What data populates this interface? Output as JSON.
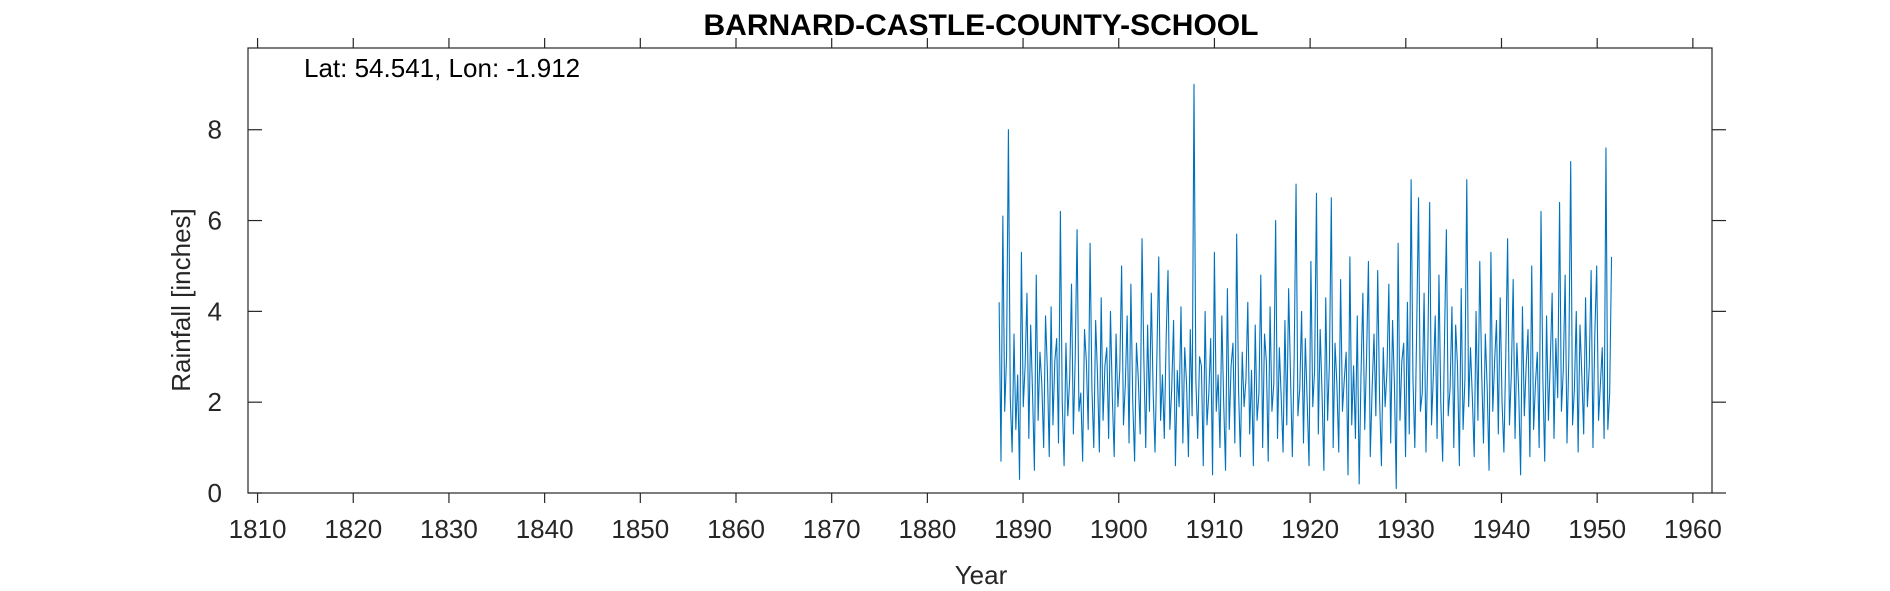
{
  "chart_data": {
    "type": "line",
    "title": "BARNARD-CASTLE-COUNTY-SCHOOL",
    "annotation": "Lat: 54.541, Lon: -1.912",
    "xlabel": "Year",
    "ylabel": "Rainfall [inches]",
    "xlim": [
      1809,
      1962
    ],
    "ylim": [
      0,
      9.8
    ],
    "xticks": [
      1810,
      1820,
      1830,
      1840,
      1850,
      1860,
      1870,
      1880,
      1890,
      1900,
      1910,
      1920,
      1930,
      1940,
      1950,
      1960
    ],
    "yticks": [
      0,
      2,
      4,
      6,
      8
    ],
    "grid": false,
    "series": [
      {
        "color": "#0072bd",
        "start_year": 1887.5,
        "end_year": 1951.5,
        "values": [
          4.2,
          0.7,
          6.1,
          1.8,
          3.0,
          8.0,
          2.1,
          0.9,
          3.5,
          1.4,
          2.6,
          0.3,
          5.3,
          1.9,
          2.8,
          4.4,
          1.2,
          3.7,
          2.2,
          0.5,
          4.8,
          1.6,
          3.1,
          2.4,
          1.0,
          3.9,
          2.7,
          0.8,
          4.1,
          1.5,
          2.9,
          3.4,
          1.1,
          6.2,
          2.0,
          0.6,
          3.3,
          1.7,
          2.5,
          4.6,
          1.3,
          3.0,
          5.8,
          1.8,
          2.2,
          0.7,
          3.6,
          2.9,
          1.4,
          5.5,
          2.3,
          1.0,
          3.8,
          2.6,
          0.9,
          4.3,
          1.6,
          2.8,
          3.2,
          1.2,
          4.0,
          2.1,
          0.8,
          3.5,
          1.9,
          2.7,
          5.0,
          1.5,
          2.4,
          3.9,
          1.1,
          4.6,
          2.0,
          0.7,
          3.3,
          2.5,
          1.3,
          5.6,
          2.9,
          1.0,
          3.7,
          1.8,
          4.4,
          2.2,
          0.9,
          3.0,
          5.2,
          1.6,
          2.6,
          1.2,
          3.4,
          4.9,
          1.4,
          2.3,
          3.8,
          0.6,
          2.7,
          1.9,
          4.1,
          1.1,
          3.2,
          2.4,
          0.8,
          3.6,
          1.7,
          9.0,
          2.5,
          1.2,
          3.0,
          2.8,
          0.6,
          4.0,
          1.5,
          2.2,
          3.4,
          0.4,
          5.3,
          1.8,
          2.6,
          1.0,
          3.9,
          2.0,
          0.5,
          4.5,
          1.4,
          2.8,
          3.3,
          1.1,
          5.7,
          2.3,
          0.8,
          3.1,
          1.9,
          2.5,
          4.2,
          1.3,
          2.7,
          0.6,
          3.7,
          1.6,
          2.2,
          4.8,
          1.0,
          3.5,
          2.9,
          0.7,
          4.1,
          1.8,
          2.4,
          6.0,
          1.2,
          3.2,
          2.1,
          0.9,
          3.8,
          1.5,
          4.5,
          2.6,
          0.8,
          3.0,
          6.8,
          1.7,
          2.3,
          4.0,
          1.1,
          3.4,
          2.0,
          0.6,
          5.1,
          1.9,
          2.7,
          6.6,
          1.3,
          3.6,
          2.2,
          0.5,
          4.3,
          1.6,
          2.9,
          6.5,
          1.0,
          3.3,
          2.4,
          0.9,
          4.7,
          1.8,
          2.5,
          3.1,
          0.4,
          5.2,
          1.5,
          2.8,
          1.2,
          3.9,
          0.2,
          2.6,
          4.4,
          1.4,
          3.0,
          5.1,
          0.8,
          2.3,
          3.5,
          1.7,
          4.9,
          2.1,
          0.6,
          3.2,
          1.9,
          2.7,
          4.6,
          1.1,
          3.8,
          2.4,
          0.1,
          5.5,
          1.6,
          2.9,
          3.3,
          0.8,
          4.2,
          1.3,
          6.9,
          2.5,
          1.0,
          3.6,
          6.5,
          1.8,
          2.2,
          4.4,
          0.9,
          3.1,
          6.4,
          1.5,
          2.6,
          3.9,
          1.2,
          4.8,
          2.0,
          0.7,
          3.4,
          5.8,
          1.7,
          2.3,
          4.1,
          1.0,
          3.7,
          2.8,
          0.6,
          4.5,
          1.4,
          2.5,
          6.9,
          1.9,
          3.2,
          2.1,
          0.8,
          4.0,
          1.6,
          5.1,
          2.7,
          1.1,
          3.5,
          2.3,
          0.5,
          5.3,
          1.8,
          2.9,
          3.8,
          1.3,
          4.3,
          2.0,
          0.9,
          3.0,
          5.6,
          1.5,
          2.6,
          4.7,
          1.2,
          3.3,
          2.2,
          0.4,
          4.1,
          1.7,
          2.8,
          3.6,
          0.8,
          5.0,
          1.4,
          2.4,
          3.1,
          1.0,
          6.2,
          2.5,
          0.7,
          3.9,
          1.6,
          2.9,
          4.4,
          1.2,
          3.4,
          2.1,
          6.4,
          1.8,
          2.7,
          4.8,
          1.1,
          3.0,
          7.3,
          1.5,
          2.3,
          4.0,
          0.9,
          3.7,
          2.6,
          1.3,
          4.3,
          1.9,
          2.8,
          4.9,
          1.0,
          3.5,
          5.0,
          1.6,
          2.4,
          3.2,
          1.2,
          7.6,
          1.4,
          2.2,
          5.2
        ]
      }
    ]
  }
}
